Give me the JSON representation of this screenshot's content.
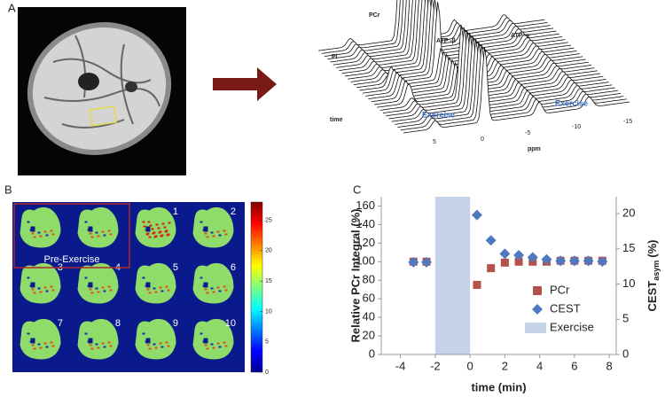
{
  "panels": {
    "a": "A",
    "b": "B",
    "c": "C"
  },
  "waterfall": {
    "peaks": [
      "PCr",
      "ATP -β",
      "ATP -γ",
      "Pi"
    ],
    "time_label": "time",
    "ppm_label": "ppm",
    "exercise_labels": [
      "Exercise",
      "Exercise"
    ],
    "ppm_ticks": [
      "5",
      "0",
      "-5",
      "-10",
      "-15"
    ]
  },
  "maps": {
    "group_label": "Pre-Exercise",
    "image_labels": [
      "1",
      "2",
      "3",
      "4",
      "5",
      "6",
      "7",
      "8",
      "9",
      "10"
    ],
    "colorbar": {
      "lim": [
        0,
        28
      ],
      "ticks": [
        0,
        5,
        10,
        15,
        20,
        25
      ]
    }
  },
  "chart_data": {
    "type": "scatter",
    "xlabel": "time (min)",
    "ylabel": "Relative PCr Integral (%)",
    "y2label": "CEST",
    "y2label_sub": "asym",
    "y2label_unit": "(%)",
    "x": [
      -3.25,
      -2.5,
      0.4,
      1.2,
      2,
      2.8,
      3.6,
      4.4,
      5.2,
      6,
      6.8,
      7.6
    ],
    "series": [
      {
        "name": "PCr",
        "color": "#b5504a",
        "marker": "square",
        "values": [
          100,
          100,
          75,
          93,
          99,
          100,
          100,
          100,
          101,
          101,
          101,
          101
        ]
      },
      {
        "name": "CEST",
        "color": "#4f79bf",
        "marker": "diamond",
        "axis": "y2",
        "values": [
          13.1,
          13.1,
          19.8,
          16.2,
          14.3,
          14.1,
          13.8,
          13.5,
          13.3,
          13.3,
          13.3,
          13.2
        ]
      }
    ],
    "shaded_region": {
      "name": "Exercise",
      "color": "#c5d3e8",
      "x": [
        -2,
        0
      ]
    },
    "xlim": [
      -5.1,
      8.4
    ],
    "xticks": [
      -4,
      -2,
      0,
      2,
      4,
      6,
      8
    ],
    "ylim": [
      0,
      170
    ],
    "yticks": [
      0,
      20,
      40,
      60,
      80,
      100,
      120,
      140,
      160
    ],
    "y2lim": [
      0,
      22.4
    ],
    "y2ticks": [
      0,
      5,
      10,
      15,
      20
    ]
  }
}
